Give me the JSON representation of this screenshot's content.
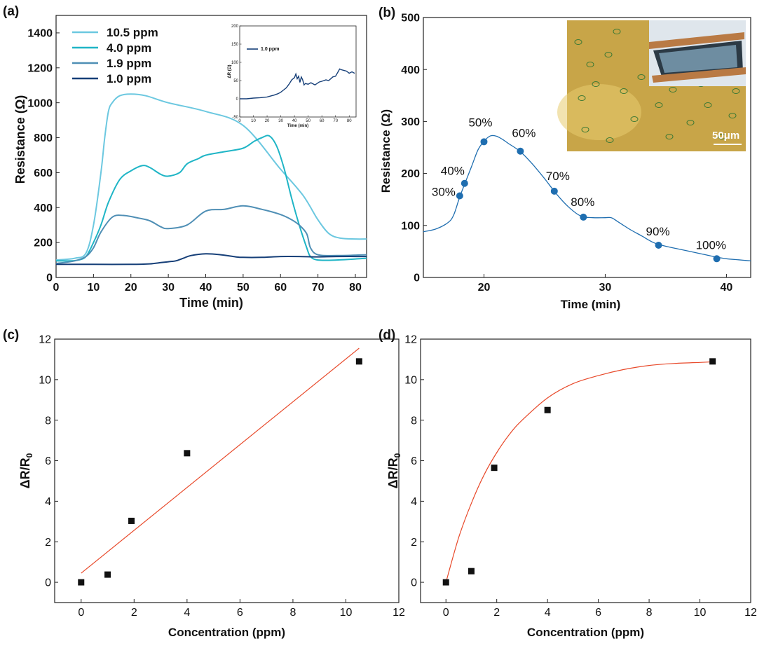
{
  "chart_data": [
    {
      "panel": "(a)",
      "type": "line",
      "xlabel": "Time (min)",
      "ylabel": "Resistance (Ω)",
      "xlim": [
        0,
        83
      ],
      "ylim": [
        0,
        1500
      ],
      "xticks": [
        0,
        10,
        20,
        30,
        40,
        50,
        60,
        70,
        80
      ],
      "yticks": [
        0,
        200,
        400,
        600,
        800,
        1000,
        1200,
        1400
      ],
      "legend": "top-left",
      "series": [
        {
          "name": "10.5 ppm",
          "color": "#6cc8e0",
          "x": [
            0,
            5,
            8,
            10,
            12,
            13,
            14,
            15,
            17,
            20,
            24,
            30,
            40,
            50,
            60,
            66,
            70,
            73,
            76,
            80,
            83
          ],
          "y": [
            100,
            110,
            140,
            300,
            600,
            800,
            950,
            1000,
            1040,
            1050,
            1040,
            1000,
            950,
            870,
            620,
            470,
            330,
            250,
            225,
            220,
            220
          ]
        },
        {
          "name": "4.0 ppm",
          "color": "#1fb5c6",
          "x": [
            0,
            4,
            6,
            8,
            10,
            12,
            14,
            17,
            20,
            23,
            25,
            28,
            30,
            33,
            35,
            38,
            40,
            45,
            50,
            53,
            55,
            57,
            59,
            61,
            63,
            65,
            67,
            68,
            70,
            75,
            83
          ],
          "y": [
            95,
            95,
            100,
            120,
            200,
            300,
            430,
            560,
            610,
            640,
            630,
            590,
            580,
            600,
            650,
            680,
            700,
            720,
            740,
            780,
            800,
            810,
            750,
            620,
            450,
            300,
            170,
            120,
            100,
            100,
            110
          ]
        },
        {
          "name": "1.9 ppm",
          "color": "#4f8fb5",
          "x": [
            0,
            5,
            8,
            10,
            12,
            15,
            18,
            22,
            25,
            28,
            30,
            35,
            40,
            45,
            50,
            55,
            60,
            63,
            65,
            67,
            68,
            70,
            75,
            83
          ],
          "y": [
            80,
            95,
            120,
            170,
            260,
            345,
            355,
            340,
            325,
            290,
            280,
            300,
            380,
            390,
            410,
            390,
            360,
            330,
            300,
            250,
            170,
            130,
            125,
            130
          ]
        },
        {
          "name": "1.0 ppm",
          "color": "#163f78",
          "x": [
            0,
            5,
            10,
            20,
            25,
            28,
            30,
            32,
            34,
            36,
            40,
            44,
            48,
            50,
            55,
            60,
            65,
            70,
            75,
            83
          ],
          "y": [
            75,
            75,
            75,
            75,
            78,
            85,
            90,
            95,
            110,
            125,
            135,
            130,
            118,
            115,
            115,
            120,
            120,
            118,
            120,
            120
          ]
        }
      ],
      "inset": {
        "type": "line",
        "xlabel": "Time (min)",
        "ylabel": "ΔR (Ω)",
        "xlim": [
          0,
          85
        ],
        "ylim": [
          -50,
          200
        ],
        "xticks": [
          0,
          10,
          20,
          30,
          40,
          50,
          60,
          70,
          80
        ],
        "yticks": [
          -50,
          0,
          50,
          100,
          150,
          200
        ],
        "series": [
          {
            "name": "1.0 ppm",
            "color": "#163f78",
            "x": [
              0,
              5,
              10,
              15,
              20,
              23,
              25,
              28,
              30,
              32,
              34,
              36,
              38,
              40,
              41,
              42,
              43,
              44,
              45,
              46,
              47,
              48,
              50,
              52,
              55,
              58,
              60,
              63,
              65,
              68,
              70,
              72,
              73,
              74,
              76,
              78,
              80,
              82,
              84
            ],
            "y": [
              0,
              0,
              2,
              3,
              5,
              8,
              10,
              14,
              18,
              24,
              30,
              40,
              52,
              58,
              68,
              55,
              62,
              45,
              60,
              52,
              38,
              42,
              40,
              44,
              38,
              46,
              48,
              52,
              50,
              60,
              62,
              75,
              82,
              80,
              78,
              76,
              70,
              74,
              70
            ]
          }
        ]
      }
    },
    {
      "panel": "(b)",
      "type": "line",
      "xlabel": "Time (min)",
      "ylabel": "Resistance (Ω)",
      "xlim": [
        15,
        42
      ],
      "ylim": [
        0,
        500
      ],
      "xticks": [
        20,
        30,
        40
      ],
      "yticks": [
        0,
        100,
        200,
        300,
        400,
        500
      ],
      "curve": {
        "color": "#1f6eb0",
        "x": [
          15,
          16,
          17,
          17.5,
          18,
          18.5,
          19,
          19.5,
          20,
          20.5,
          21,
          21.5,
          22,
          23,
          24,
          25,
          26,
          27,
          28,
          29,
          30,
          30.5,
          31,
          32,
          33,
          34,
          35,
          36,
          37,
          38,
          39,
          40,
          41,
          42
        ],
        "y": [
          88,
          93,
          105,
          120,
          155,
          185,
          215,
          245,
          262,
          272,
          272,
          266,
          258,
          242,
          218,
          190,
          160,
          135,
          118,
          115,
          115,
          115,
          108,
          93,
          80,
          67,
          60,
          55,
          50,
          45,
          40,
          36,
          34,
          32
        ]
      },
      "points": [
        {
          "x": 18.0,
          "y": 157,
          "label": "30%"
        },
        {
          "x": 18.4,
          "y": 181,
          "label": "40%"
        },
        {
          "x": 20.0,
          "y": 261,
          "label": "50%"
        },
        {
          "x": 23.0,
          "y": 243,
          "label": "60%"
        },
        {
          "x": 25.8,
          "y": 166,
          "label": "70%"
        },
        {
          "x": 28.2,
          "y": 116,
          "label": "80%"
        },
        {
          "x": 34.4,
          "y": 62,
          "label": "90%"
        },
        {
          "x": 39.2,
          "y": 36,
          "label": "100%"
        }
      ],
      "point_color": "#1f6eb0",
      "inset_image": {
        "scale_bar": "50μm"
      }
    },
    {
      "panel": "(c)",
      "type": "scatter",
      "xlabel": "Concentration (ppm)",
      "ylabel": "ΔR/R",
      "ylabel_sub": "0",
      "xlim": [
        -1,
        12
      ],
      "ylim": [
        -1,
        12
      ],
      "xticks": [
        0,
        2,
        4,
        6,
        8,
        10,
        12
      ],
      "yticks": [
        0,
        2,
        4,
        6,
        8,
        10,
        12
      ],
      "points": [
        {
          "x": 0,
          "y": 0
        },
        {
          "x": 1.0,
          "y": 0.38
        },
        {
          "x": 1.9,
          "y": 3.03
        },
        {
          "x": 4.0,
          "y": 6.37
        },
        {
          "x": 10.5,
          "y": 10.9
        }
      ],
      "fit": {
        "kind": "linear",
        "color": "#e8492a",
        "x": [
          0,
          10.5
        ],
        "y": [
          0.45,
          11.55
        ]
      }
    },
    {
      "panel": "(d)",
      "type": "scatter",
      "xlabel": "Concentration (ppm)",
      "ylabel": "ΔR/R",
      "ylabel_sub": "0",
      "xlim": [
        -1,
        12
      ],
      "ylim": [
        -1,
        12
      ],
      "xticks": [
        0,
        2,
        4,
        6,
        8,
        10,
        12
      ],
      "yticks": [
        0,
        2,
        4,
        6,
        8,
        10,
        12
      ],
      "points": [
        {
          "x": 0,
          "y": 0
        },
        {
          "x": 1.0,
          "y": 0.55
        },
        {
          "x": 1.9,
          "y": 5.65
        },
        {
          "x": 4.0,
          "y": 8.5
        },
        {
          "x": 10.5,
          "y": 10.9
        }
      ],
      "fit": {
        "kind": "exponential",
        "color": "#e8492a",
        "x": [
          0,
          0.5,
          1,
          1.5,
          2,
          2.5,
          3,
          4,
          5,
          6,
          7,
          8,
          9,
          10,
          10.5
        ],
        "y": [
          0,
          2.2,
          3.9,
          5.3,
          6.4,
          7.3,
          8.0,
          9.1,
          9.8,
          10.2,
          10.5,
          10.7,
          10.8,
          10.85,
          10.88
        ]
      }
    }
  ]
}
